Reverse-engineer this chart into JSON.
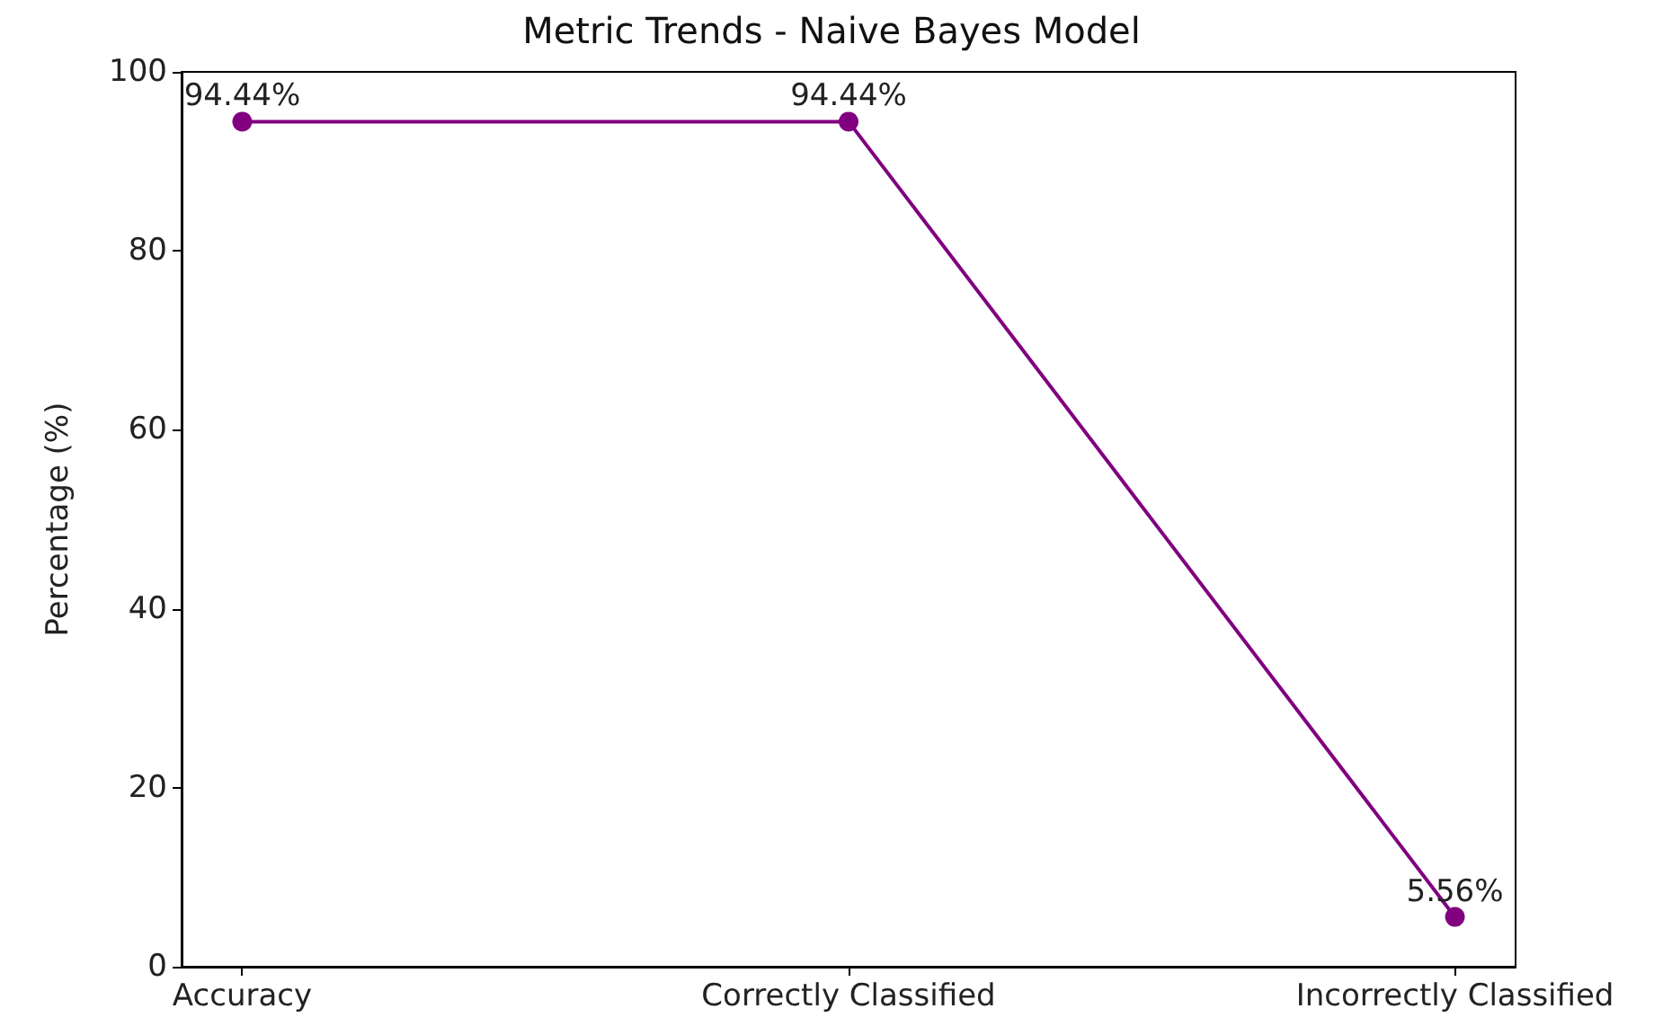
{
  "chart_data": {
    "type": "line",
    "title": "Metric Trends - Naive Bayes Model",
    "ylabel": "Percentage (%)",
    "categories": [
      "Accuracy",
      "Correctly Classified",
      "Incorrectly Classified"
    ],
    "series": [
      {
        "color": "#800080",
        "values": [
          94.44,
          94.44,
          5.56
        ],
        "value_labels": [
          "94.44%",
          "94.44%",
          "5.56%"
        ]
      }
    ],
    "ylim": [
      0,
      100
    ],
    "yticks": [
      0,
      20,
      40,
      60,
      80,
      100
    ],
    "marker": "circle",
    "grid": false
  }
}
